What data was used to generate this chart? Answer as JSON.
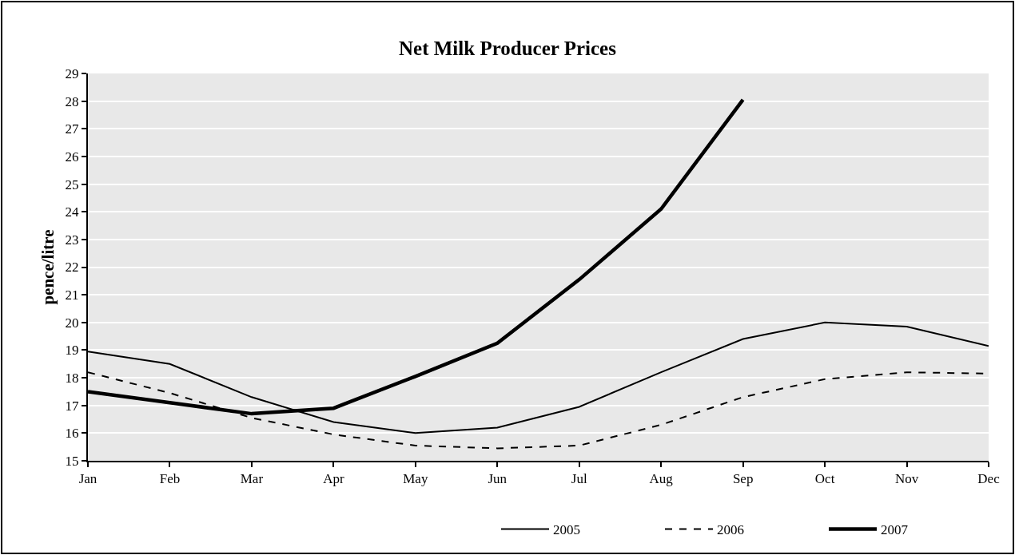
{
  "chart_data": {
    "type": "line",
    "title": "Net Milk Producer Prices",
    "ylabel": "pence/litre",
    "categories": [
      "Jan",
      "Feb",
      "Mar",
      "Apr",
      "May",
      "Jun",
      "Jul",
      "Aug",
      "Sep",
      "Oct",
      "Nov",
      "Dec"
    ],
    "series": [
      {
        "name": "2005",
        "color": "#000000",
        "line_style": "solid",
        "values": [
          18.95,
          18.5,
          17.3,
          16.4,
          16.0,
          16.2,
          16.95,
          18.2,
          19.4,
          20.0,
          19.85,
          19.15
        ]
      },
      {
        "name": "2006",
        "color": "#000000",
        "line_style": "dashed",
        "values": [
          18.2,
          17.45,
          16.55,
          15.95,
          15.55,
          15.45,
          15.55,
          16.3,
          17.3,
          17.95,
          18.2,
          18.15
        ]
      },
      {
        "name": "2007",
        "color": "#000000",
        "line_style": "solid",
        "values": [
          17.5,
          17.1,
          16.7,
          16.9,
          18.05,
          19.25,
          21.55,
          24.1,
          28.05,
          null,
          null,
          null
        ]
      }
    ],
    "ylim": [
      15,
      29
    ],
    "yticks": [
      15,
      16,
      17,
      18,
      19,
      20,
      21,
      22,
      23,
      24,
      25,
      26,
      27,
      28,
      29
    ],
    "grid": "y",
    "legend": "bottom right",
    "marker": "none"
  }
}
